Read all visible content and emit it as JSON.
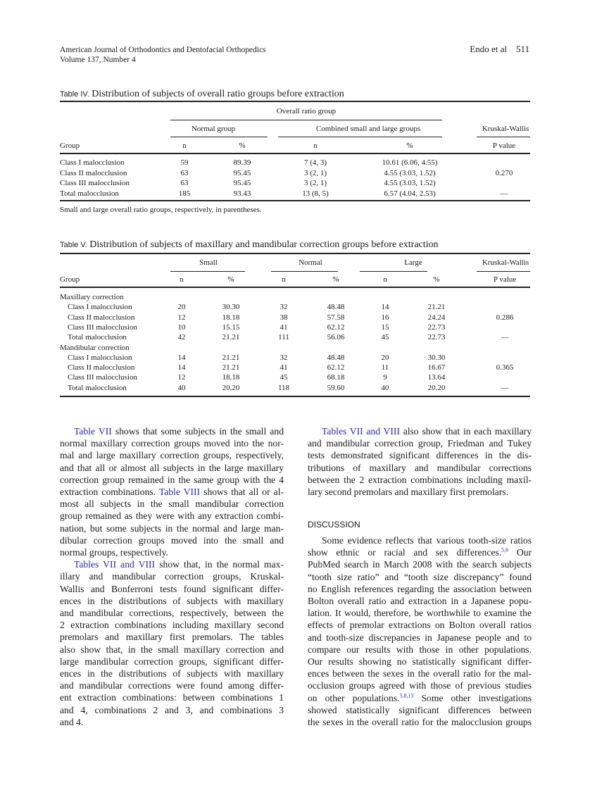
{
  "header": {
    "journal": "American Journal of Orthodontics and Dentofacial Orthopedics",
    "volume": "Volume 137, Number 4",
    "authors": "Endo et al",
    "page": "511"
  },
  "table4": {
    "label": "Table IV.",
    "title": "Distribution of subjects of overall ratio groups before extraction",
    "spanner": "Overall ratio group",
    "groups": [
      "Normal group",
      "Combined small and large groups",
      "Kruskal-Wallis"
    ],
    "columns": [
      "Group",
      "n",
      "%",
      "n",
      "%",
      "P value"
    ],
    "rows": [
      [
        "Class I malocclusion",
        "59",
        "89.39",
        "7 (4, 3)",
        "10.61 (6.06, 4.55)",
        ""
      ],
      [
        "Class II malocclusion",
        "63",
        "95.45",
        "3 (2, 1)",
        "4.55 (3.03, 1.52)",
        "0.270"
      ],
      [
        "Class III malocclusion",
        "63",
        "95.45",
        "3 (2, 1)",
        "4.55 (3.03, 1.52)",
        ""
      ],
      [
        "Total malocclusion",
        "185",
        "93.43",
        "13 (8, 5)",
        "6.57 (4.04, 2.53)",
        "—"
      ]
    ],
    "footnote": "Small and large overall ratio groups, respectively, in parentheses."
  },
  "table5": {
    "label": "Table V.",
    "title": "Distribution of subjects of maxillary and mandibular correction groups before extraction",
    "groups": [
      "Small",
      "Normal",
      "Large",
      "Kruskal-Wallis"
    ],
    "columns": [
      "Group",
      "n",
      "%",
      "n",
      "%",
      "n",
      "%",
      "P value"
    ],
    "rows": [
      [
        "Maxillary correction",
        "",
        "",
        "",
        "",
        "",
        "",
        ""
      ],
      [
        "Class I malocclusion",
        "20",
        "30.30",
        "32",
        "48.48",
        "14",
        "21.21",
        ""
      ],
      [
        "Class II malocclusion",
        "12",
        "18.18",
        "38",
        "57.58",
        "16",
        "24.24",
        "0.286"
      ],
      [
        "Class III malocclusion",
        "10",
        "15.15",
        "41",
        "62.12",
        "15",
        "22.73",
        ""
      ],
      [
        "Total malocclusion",
        "42",
        "21.21",
        "111",
        "56.06",
        "45",
        "22.73",
        "—"
      ],
      [
        "Mandibular correction",
        "",
        "",
        "",
        "",
        "",
        "",
        ""
      ],
      [
        "Class I malocclusion",
        "14",
        "21.21",
        "32",
        "48.48",
        "20",
        "30.30",
        ""
      ],
      [
        "Class II malocclusion",
        "14",
        "21.21",
        "41",
        "62.12",
        "11",
        "16.67",
        "0.365"
      ],
      [
        "Class III malocclusion",
        "12",
        "18.18",
        "45",
        "68.18",
        "9",
        "13.64",
        ""
      ],
      [
        "Total malocclusion",
        "40",
        "20.20",
        "118",
        "59.60",
        "40",
        "20.20",
        "—"
      ]
    ]
  },
  "body": {
    "left": [
      [
        {
          "link": "Table VII"
        },
        {
          "t": " shows that some subjects in the small and"
        }
      ],
      [
        {
          "t": "normal maxillary correction groups moved into the nor-"
        }
      ],
      [
        {
          "t": "mal and large maxillary correction groups, respectively,"
        }
      ],
      [
        {
          "t": "and that all or almost all subjects in the large maxillary"
        }
      ],
      [
        {
          "t": "correction group remained in the same group with the 4"
        }
      ],
      [
        {
          "t": "extraction combinations. "
        },
        {
          "link": "Table VIII"
        },
        {
          "t": " shows that all or al-"
        }
      ],
      [
        {
          "t": "most all subjects in the small mandibular correction"
        }
      ],
      [
        {
          "t": "group remained as they were with any extraction combi-"
        }
      ],
      [
        {
          "t": "nation, but some subjects in the normal and large man-"
        }
      ],
      [
        {
          "t": "dibular correction groups moved into the small and"
        }
      ],
      [
        {
          "t": "normal groups, respectively."
        }
      ],
      [
        {
          "link": "Tables VII and VIII"
        },
        {
          "t": " show that, in the normal max-"
        }
      ],
      [
        {
          "t": "illary and mandibular correction groups, Kruskal-"
        }
      ],
      [
        {
          "t": "Wallis and Bonferroni tests found significant differ-"
        }
      ],
      [
        {
          "t": "ences in the distributions of subjects with maxillary"
        }
      ],
      [
        {
          "t": "and mandibular corrections, respectively, between the"
        }
      ],
      [
        {
          "t": "2 extraction combinations including maxillary second"
        }
      ],
      [
        {
          "t": "premolars and maxillary first premolars. The tables"
        }
      ],
      [
        {
          "t": "also show that, in the small maxillary correction and"
        }
      ],
      [
        {
          "t": "large mandibular correction groups, significant differ-"
        }
      ],
      [
        {
          "t": "ences in the distributions of subjects with maxillary"
        }
      ],
      [
        {
          "t": "and mandibular corrections were found among differ-"
        }
      ],
      [
        {
          "t": "ent extraction combinations: between combinations 1"
        }
      ],
      [
        {
          "t": "and 4, combinations 2 and 3, and combinations 3"
        }
      ],
      [
        {
          "t": "and 4."
        }
      ]
    ],
    "right_top": [
      [
        {
          "link": "Tables VII and VIII"
        },
        {
          "t": " also show that in each maxillary"
        }
      ],
      [
        {
          "t": "and mandibular correction group, Friedman and Tukey"
        }
      ],
      [
        {
          "t": "tests demonstrated significant differences in the dis-"
        }
      ],
      [
        {
          "t": "tributions of maxillary and mandibular corrections"
        }
      ],
      [
        {
          "t": "between the 2 extraction combinations including maxil-"
        }
      ],
      [
        {
          "t": "lary second premolars and maxillary first premolars."
        }
      ]
    ],
    "section_heading": "DISCUSSION",
    "right_bottom": [
      [
        {
          "t": "Some evidence reflects that various tooth-size ratios"
        }
      ],
      [
        {
          "t": "show ethnic or racial and sex differences."
        },
        {
          "sup": "5,6"
        },
        {
          "t": " Our"
        }
      ],
      [
        {
          "t": "PubMed search in March 2008 with the search subjects"
        }
      ],
      [
        {
          "t": "“tooth size ratio” and “tooth size discrepancy” found"
        }
      ],
      [
        {
          "t": "no English references regarding the association between"
        }
      ],
      [
        {
          "t": "Bolton overall ratio and extraction in a Japanese popu-"
        }
      ],
      [
        {
          "t": "lation. It would, therefore, be worthwhile to examine the"
        }
      ],
      [
        {
          "t": "effects of premolar extractions on Bolton overall ratios"
        }
      ],
      [
        {
          "t": "and tooth-size discrepancies in Japanese people and to"
        }
      ],
      [
        {
          "t": "compare our results with those in other populations."
        }
      ],
      [
        {
          "t": "Our results showing no statistically significant differ-"
        }
      ],
      [
        {
          "t": "ences between the sexes in the overall ratio for the mal-"
        }
      ],
      [
        {
          "t": "occlusion groups agreed with those of previous studies"
        }
      ],
      [
        {
          "t": "on other populations."
        },
        {
          "sup": "5,8,13"
        },
        {
          "t": " Some other investigations"
        }
      ],
      [
        {
          "t": "showed statistically significant differences between"
        }
      ],
      [
        {
          "t": "the sexes in the overall ratio for the malocclusion groups"
        }
      ]
    ]
  },
  "colors": {
    "link": "#2a2a9a",
    "text": "#1a1a1a"
  }
}
